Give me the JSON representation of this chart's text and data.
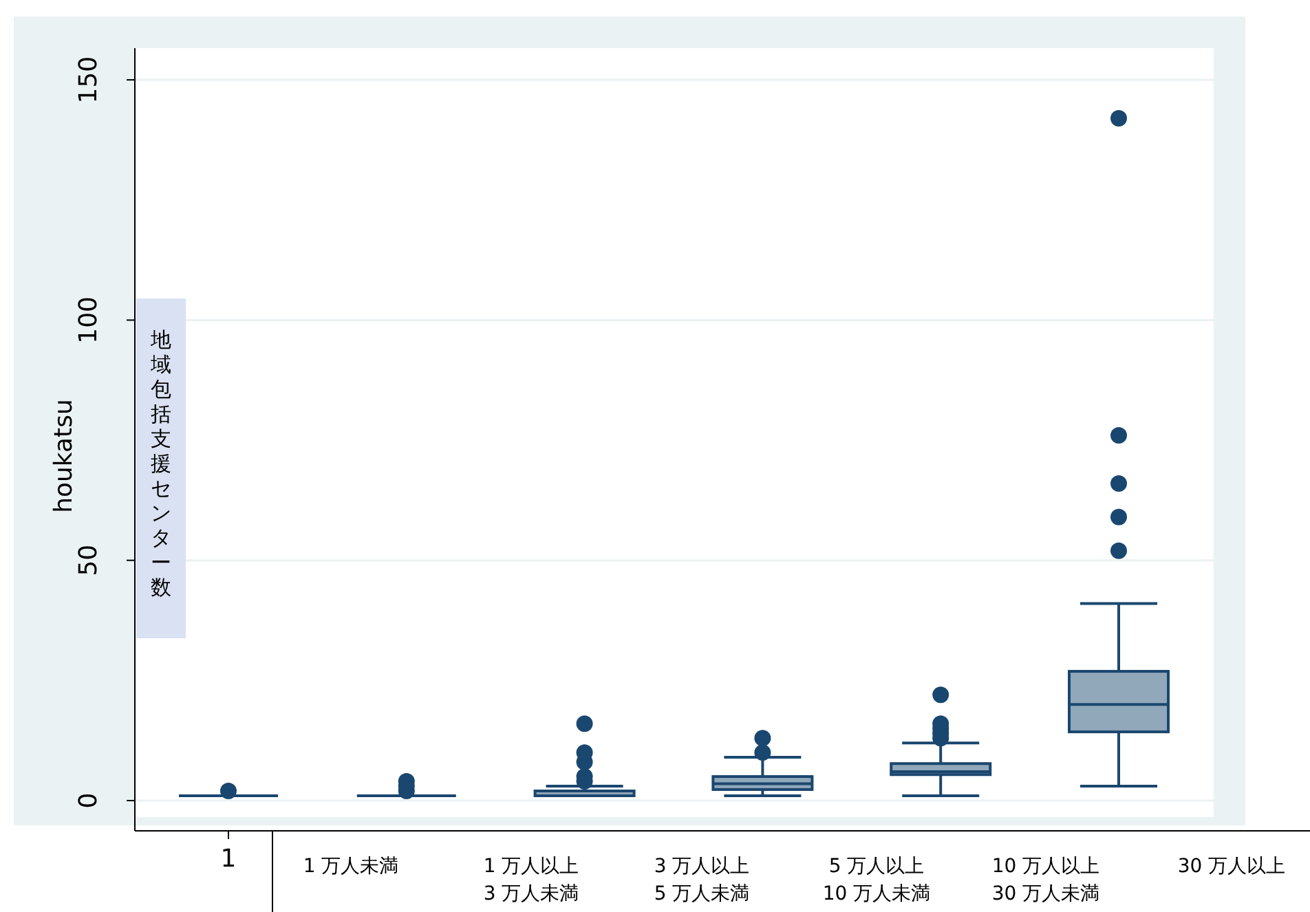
{
  "chart_data": {
    "type": "box",
    "ylabel": "houkatsu",
    "categories": [
      "1",
      null,
      null,
      null,
      null,
      null
    ],
    "color": "#1a476f",
    "ylim": [
      -6.3,
      156.6
    ],
    "yticks": [
      0,
      50,
      100,
      150
    ],
    "grid": "y",
    "marker": "circle",
    "boxes": [
      {
        "low": 1,
        "q1": 1,
        "median": 1,
        "q3": 1,
        "high": 1,
        "outliers": [
          2
        ]
      },
      {
        "low": 1,
        "q1": 1,
        "median": 1,
        "q3": 1,
        "high": 1,
        "outliers": [
          2,
          3,
          4
        ]
      },
      {
        "low": 1,
        "q1": 1,
        "median": 1,
        "q3": 2,
        "high": 3,
        "outliers": [
          4,
          5,
          8,
          10,
          16
        ]
      },
      {
        "low": 1,
        "q1": 2.3,
        "median": 3.5,
        "q3": 5,
        "high": 9,
        "outliers": [
          10,
          13
        ]
      },
      {
        "low": 1,
        "q1": 5.4,
        "median": 6,
        "q3": 7.7,
        "high": 12,
        "outliers": [
          13,
          14,
          15,
          16,
          22
        ]
      },
      {
        "low": 3,
        "q1": 14.3,
        "median": 20,
        "q3": 26.9,
        "high": 41,
        "outliers": [
          52,
          59,
          66,
          76,
          142
        ]
      }
    ],
    "annotations": [
      "地域包括支援センター数",
      "1 万人未満",
      "1 万人以上\n3 万人未満",
      "3 万人以上\n5 万人未満",
      "5 万人以上\n10 万人未満",
      "10 万人以上\n30 万人未満",
      "30 万人以上"
    ]
  }
}
